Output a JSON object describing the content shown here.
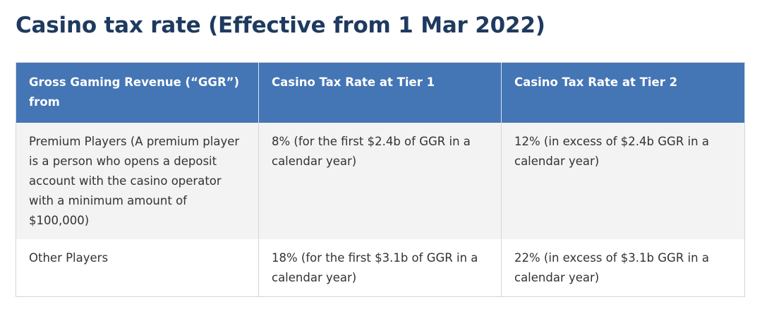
{
  "page": {
    "title": "Casino tax rate (Effective from 1 Mar 2022)"
  },
  "table": {
    "headers": [
      "Gross Gaming Revenue (“GGR”) from",
      "Casino Tax Rate at Tier 1",
      "Casino Tax Rate at Tier 2"
    ],
    "rows": [
      [
        "Premium Players (A premium player is a person who opens a deposit account with the casino operator with a minimum amount of $100,000)",
        "8% (for the first $2.4b of GGR in a calendar year)",
        "12% (in excess of $2.4b GGR in a calendar year)"
      ],
      [
        "Other Players",
        "18% (for the first $3.1b of GGR in a calendar year)",
        "22% (in excess of $3.1b GGR in a calendar year)"
      ]
    ]
  },
  "colors": {
    "title": "#1f3a5f",
    "header_background": "#4475b5",
    "header_text": "#ffffff",
    "alt_row_background": "#f3f3f3"
  }
}
